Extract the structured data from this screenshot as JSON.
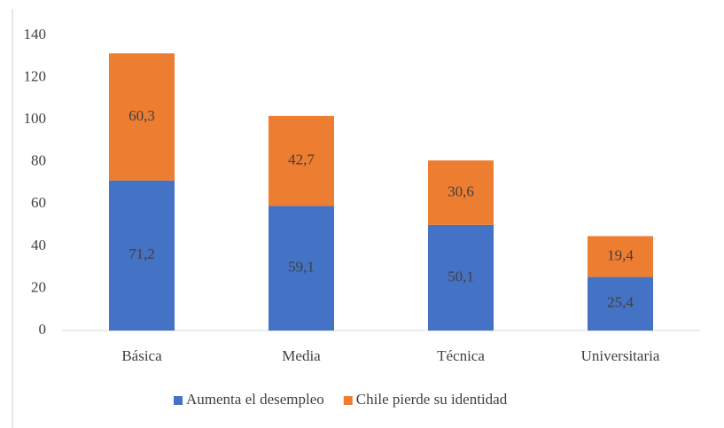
{
  "chart_data": {
    "type": "stacked_bar",
    "categories": [
      "Básica",
      "Media",
      "Técnica",
      "Universitaria"
    ],
    "series": [
      {
        "name": "Aumenta el desempleo",
        "color": "#4472c4",
        "values": [
          71.2,
          59.1,
          50.1,
          25.4
        ],
        "value_labels": [
          "71,2",
          "59,1",
          "50,1",
          "25,4"
        ]
      },
      {
        "name": "Chile pierde su identidad",
        "color": "#ed7d31",
        "values": [
          60.3,
          42.7,
          30.6,
          19.4
        ],
        "value_labels": [
          "60,3",
          "42,7",
          "30,6",
          "19,4"
        ]
      }
    ],
    "ylim": [
      0,
      140
    ],
    "yticks": [
      0,
      20,
      40,
      60,
      80,
      100,
      120,
      140
    ],
    "grid": false,
    "legend": "bottom"
  }
}
